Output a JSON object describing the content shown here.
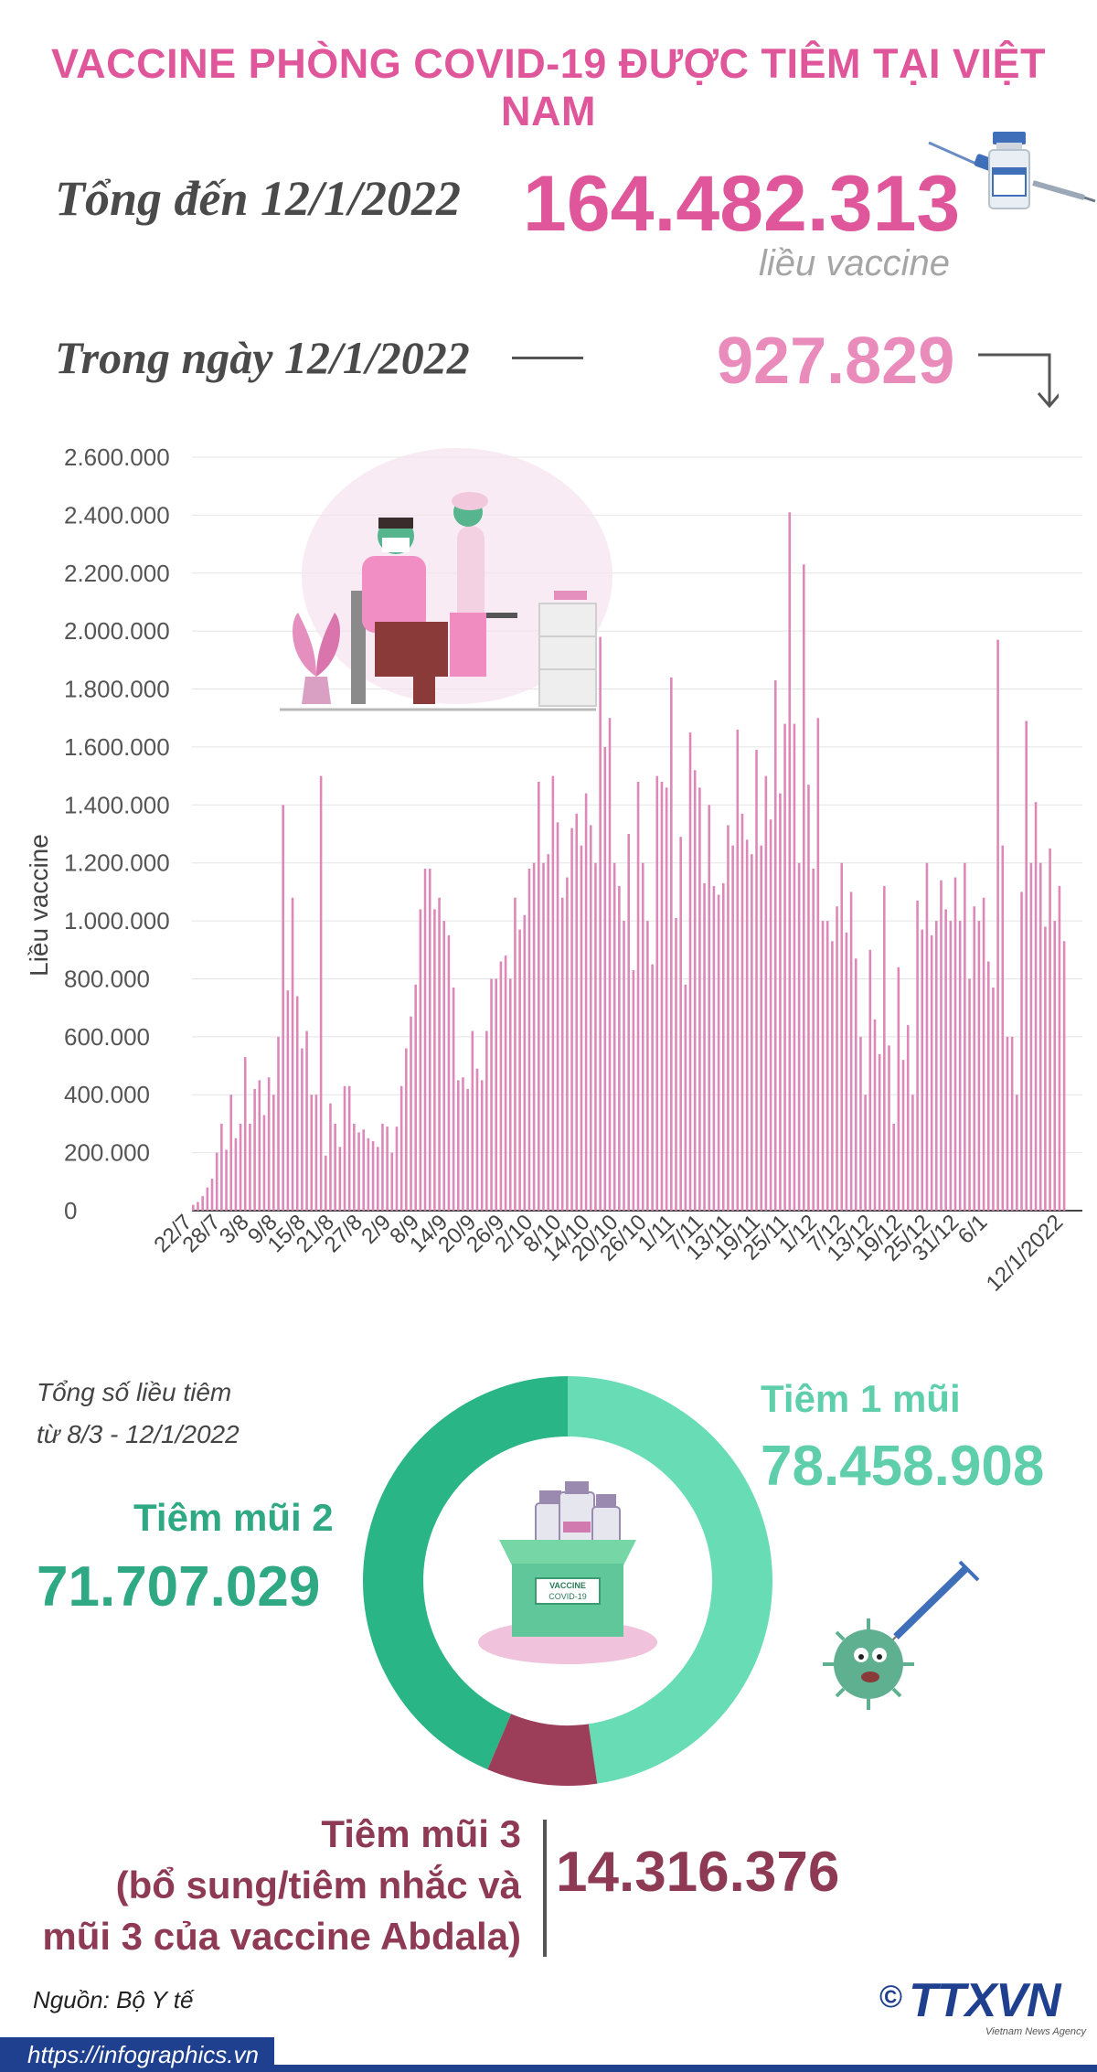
{
  "title": "VACCINE PHÒNG COVID-19 ĐƯỢC TIÊM TẠI VIỆT NAM",
  "summary": {
    "total_label": "Tổng đến 12/1/2022",
    "total_value": "164.482.313",
    "total_unit": "liều vaccine",
    "day_label": "Trong ngày 12/1/2022",
    "day_value": "927.829"
  },
  "chart_data": [
    {
      "type": "bar",
      "ylabel": "Liều vaccine",
      "ylim": [
        0,
        2600000
      ],
      "yticks": [
        0,
        200000,
        400000,
        600000,
        800000,
        1000000,
        1200000,
        1400000,
        1600000,
        1800000,
        2000000,
        2200000,
        2400000,
        2600000
      ],
      "ytick_labels": [
        "0",
        "200.000",
        "400.000",
        "600.000",
        "800.000",
        "1.000.000",
        "1.200.000",
        "1.400.000",
        "1.600.000",
        "1.800.000",
        "2.000.000",
        "2.200.000",
        "2.400.000",
        "2.600.000"
      ],
      "xtick_labels": [
        "22/7",
        "28/7",
        "3/8",
        "9/8",
        "15/8",
        "21/8",
        "27/8",
        "2/9",
        "8/9",
        "14/9",
        "20/9",
        "26/9",
        "2/10",
        "8/10",
        "14/10",
        "20/10",
        "26/10",
        "1/11",
        "7/11",
        "13/11",
        "19/11",
        "25/11",
        "1/12",
        "7/12",
        "13/12",
        "19/12",
        "25/12",
        "31/12",
        "6/1",
        "12/1/2022"
      ],
      "grid": true,
      "values": [
        20000,
        30000,
        50000,
        80000,
        110000,
        200000,
        300000,
        210000,
        400000,
        250000,
        300000,
        530000,
        300000,
        420000,
        450000,
        330000,
        460000,
        400000,
        600000,
        1400000,
        760000,
        1080000,
        740000,
        560000,
        620000,
        400000,
        400000,
        1500000,
        190000,
        370000,
        300000,
        220000,
        430000,
        430000,
        300000,
        270000,
        280000,
        250000,
        240000,
        220000,
        300000,
        290000,
        200000,
        290000,
        430000,
        560000,
        670000,
        780000,
        1040000,
        1180000,
        1180000,
        1040000,
        1080000,
        1000000,
        950000,
        770000,
        450000,
        460000,
        420000,
        620000,
        490000,
        450000,
        620000,
        800000,
        800000,
        860000,
        880000,
        800000,
        1080000,
        970000,
        1020000,
        1180000,
        1200000,
        1480000,
        1200000,
        1230000,
        1500000,
        1340000,
        1080000,
        1150000,
        1320000,
        1370000,
        1260000,
        1440000,
        1330000,
        1200000,
        1980000,
        1600000,
        1700000,
        1200000,
        1120000,
        1000000,
        1300000,
        830000,
        1480000,
        1200000,
        1000000,
        850000,
        1500000,
        1480000,
        1460000,
        1840000,
        1010000,
        1290000,
        780000,
        1650000,
        1520000,
        1460000,
        1130000,
        1400000,
        1120000,
        1090000,
        1130000,
        1330000,
        1260000,
        1660000,
        1370000,
        1280000,
        1230000,
        1590000,
        1260000,
        1500000,
        1350000,
        1830000,
        1440000,
        1680000,
        2410000,
        1680000,
        1200000,
        2230000,
        1470000,
        1180000,
        1700000,
        1000000,
        1000000,
        930000,
        1050000,
        1200000,
        960000,
        1100000,
        870000,
        600000,
        400000,
        900000,
        660000,
        540000,
        1120000,
        570000,
        300000,
        840000,
        520000,
        640000,
        400000,
        1070000,
        970000,
        1200000,
        950000,
        1000000,
        1140000,
        1040000,
        1000000,
        1150000,
        1000000,
        1200000,
        800000,
        1050000,
        1000000,
        1080000,
        860000,
        770000,
        1970000,
        1260000,
        600000,
        600000,
        400000,
        1100000,
        1690000,
        1200000,
        1410000,
        1200000,
        980000,
        1250000,
        1000000,
        1120000,
        930000
      ]
    },
    {
      "type": "pie",
      "title": "Tổng số liều tiêm từ 8/3 - 12/1/2022",
      "categories": [
        "Tiêm 1 mũi",
        "Tiêm mũi 2",
        "Tiêm mũi 3 (bổ sung/tiêm nhắc và mũi 3 của vaccine Abdala)"
      ],
      "values": [
        78458908,
        71707029,
        14316376
      ],
      "colors": [
        "#68dcb5",
        "#2ab586",
        "#9c3d5a"
      ]
    }
  ],
  "donut": {
    "note_line1": "Tổng số liều tiêm",
    "note_line2": "từ 8/3 - 12/1/2022",
    "dose1_label": "Tiêm 1 mũi",
    "dose1_value": "78.458.908",
    "dose2_label": "Tiêm mũi 2",
    "dose2_value": "71.707.029",
    "dose3_label_line1": "Tiêm mũi 3",
    "dose3_label_line2": "(bổ sung/tiêm nhắc và",
    "dose3_label_line3": "mũi 3 của vaccine Abdala)",
    "dose3_value": "14.316.376",
    "box_label_top": "VACCINE",
    "box_label_bottom": "COVID-19"
  },
  "footer": {
    "source": "Nguồn: Bộ Y tế",
    "url": "https://infographics.vn",
    "logo": "TTXVN",
    "logo_sub": "Vietnam News Agency"
  },
  "colors": {
    "accent": "#e0569a",
    "bar": "#dd88b8",
    "dose1": "#68dcb5",
    "dose2": "#2ab586",
    "dose3": "#9c3d5a",
    "brand": "#1f3f8f"
  }
}
